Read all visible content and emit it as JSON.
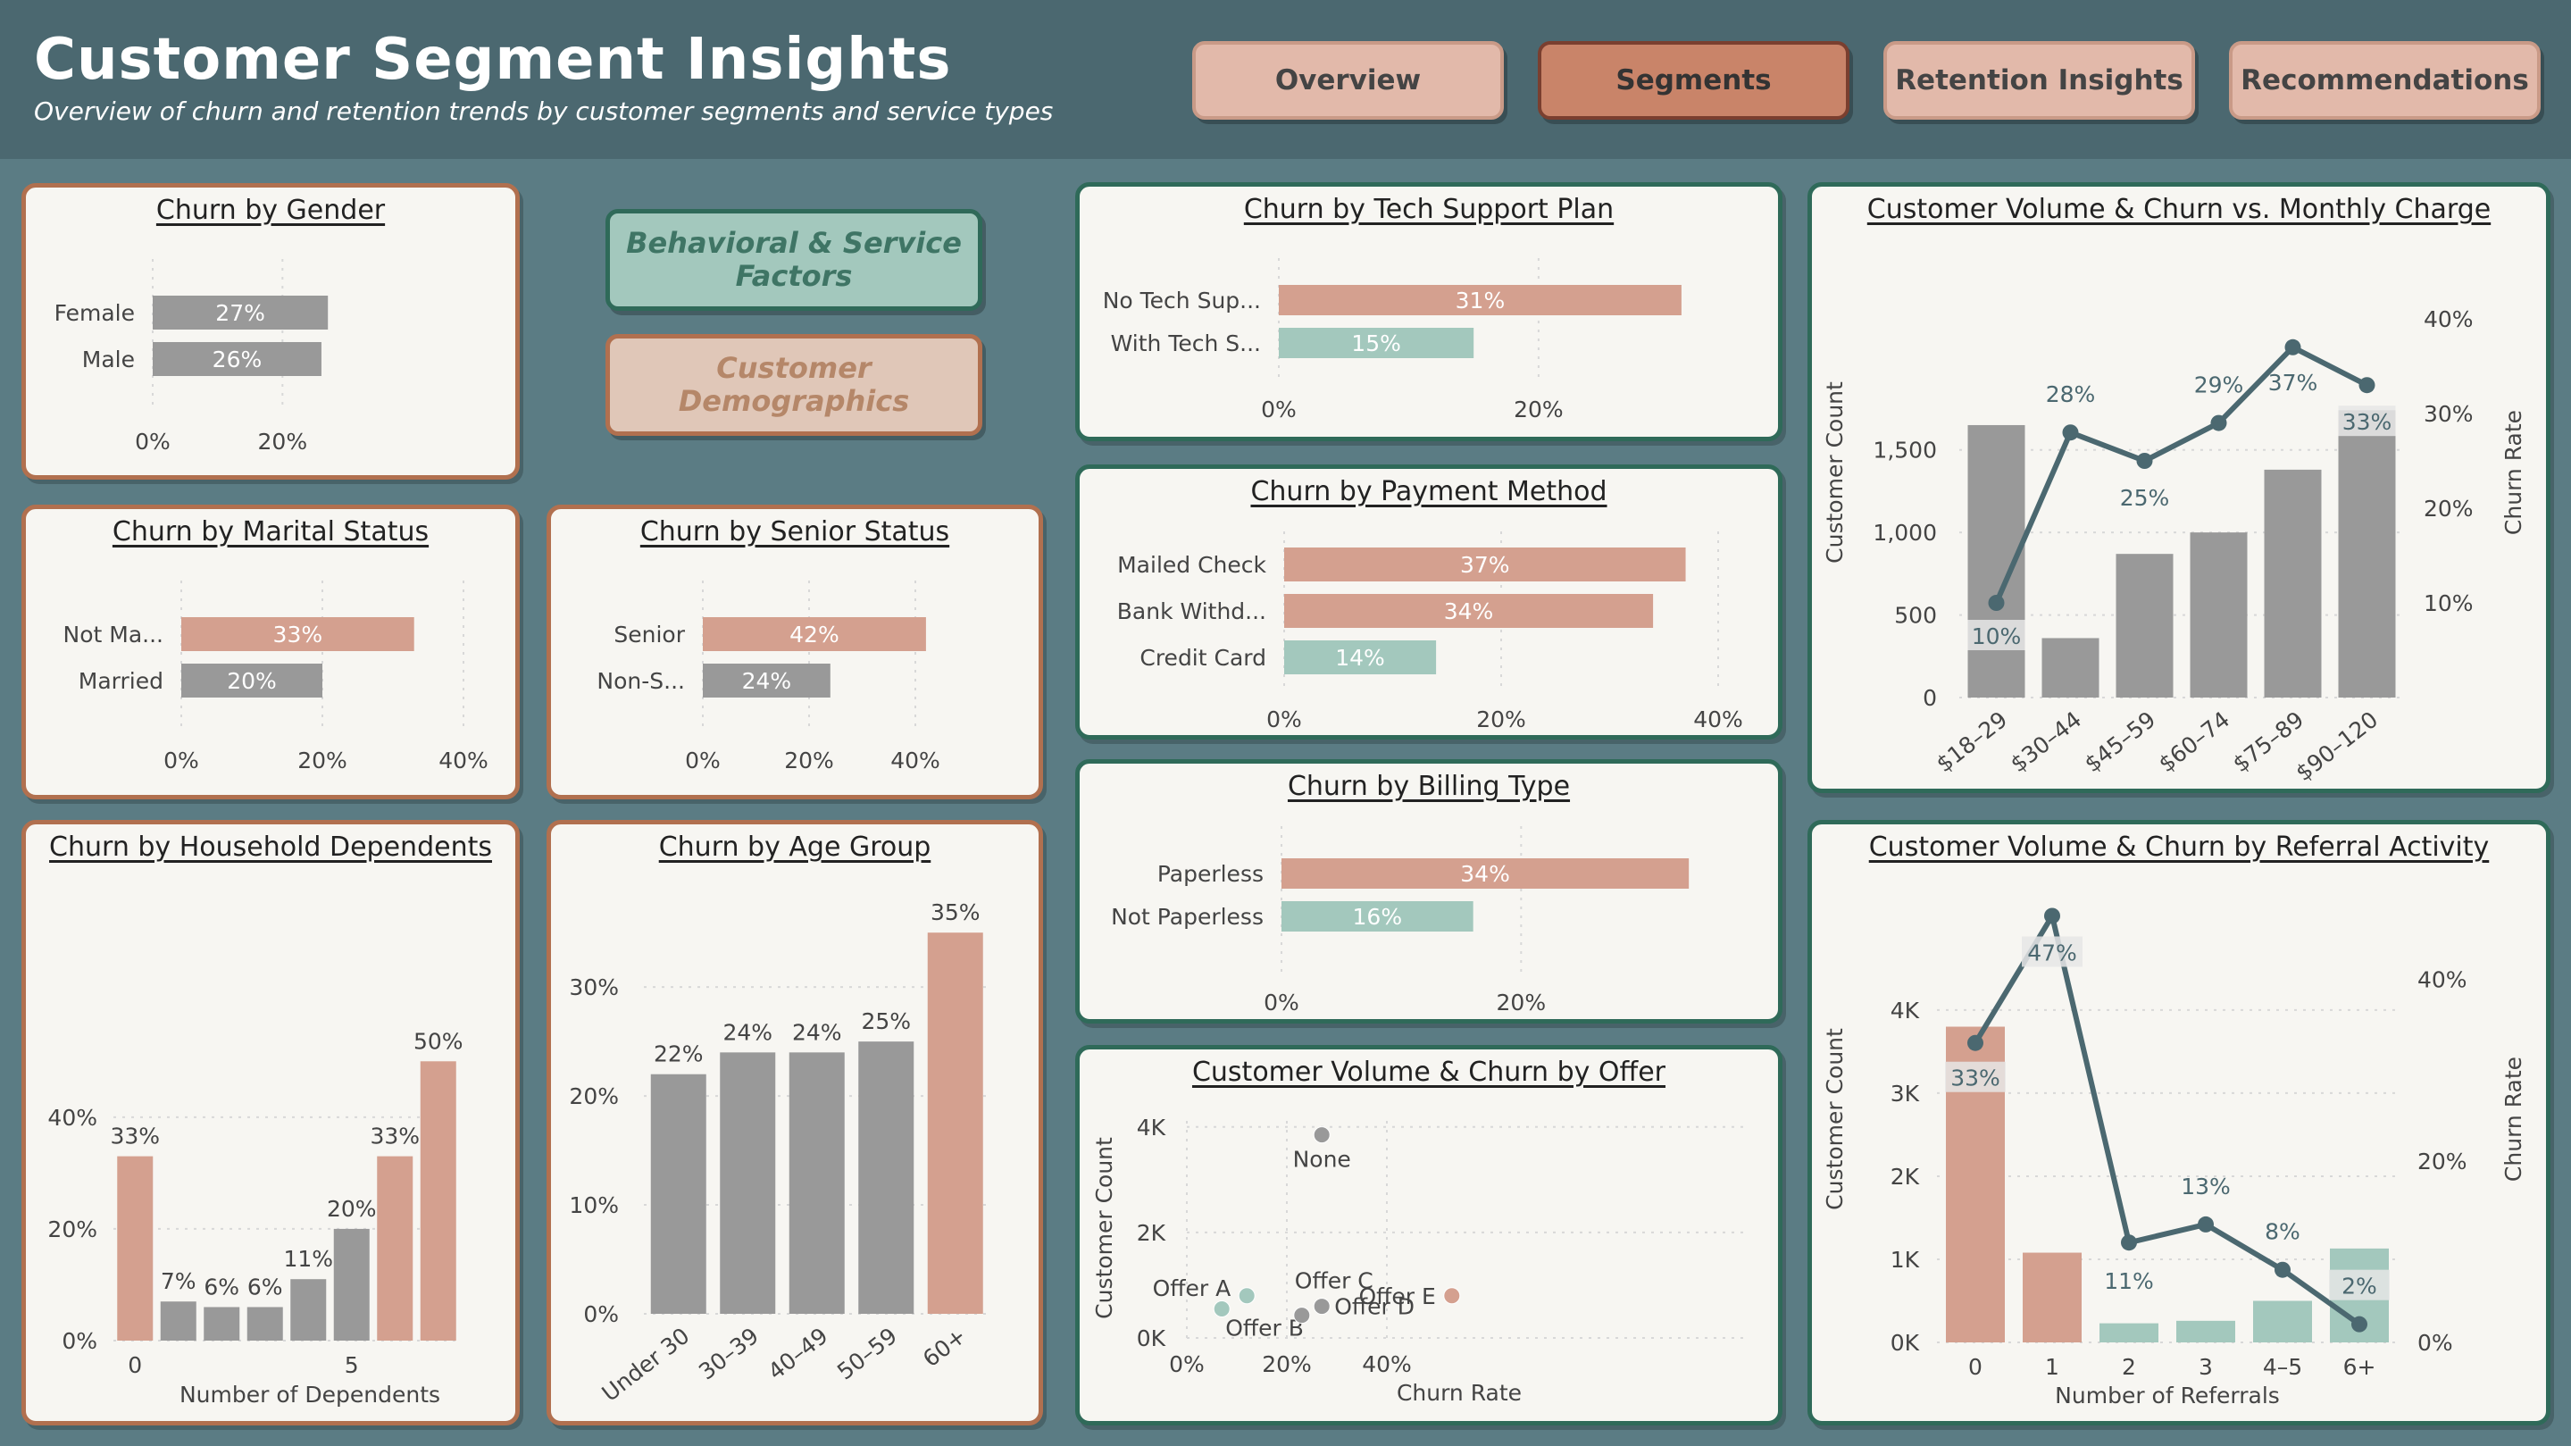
{
  "header": {
    "title": "Customer Segment Insights",
    "subtitle": "Overview of churn and retention trends by customer segments and service types",
    "nav": [
      "Overview",
      "Segments",
      "Retention Insights",
      "Recommendations"
    ],
    "active_nav": "Segments"
  },
  "segment_buttons": {
    "behavioral": "Behavioral & Service Factors",
    "behavioral_lines": [
      "Behavioral & Service",
      "Factors"
    ],
    "demographics": "Customer Demographics",
    "demographics_lines": [
      "Customer",
      "Demographics"
    ]
  },
  "colors": {
    "highlight": "#d4a08f",
    "neutral": "#999999",
    "low": "#a3c8bd",
    "line": "#4b6870",
    "panel_border_green": "#2f6a59",
    "panel_border_brown": "#b1704f"
  },
  "chart_data": [
    {
      "id": "gender",
      "type": "bar",
      "orientation": "horizontal",
      "title": "Churn by Gender",
      "categories": [
        "Female",
        "Male"
      ],
      "values": [
        27,
        26
      ],
      "labels": [
        "27%",
        "26%"
      ],
      "colors": [
        "neutral",
        "neutral"
      ],
      "xlim": [
        0,
        30
      ],
      "xticks": [
        0,
        20
      ],
      "xtick_labels": [
        "0%",
        "20%"
      ]
    },
    {
      "id": "marital",
      "type": "bar",
      "orientation": "horizontal",
      "title": "Churn by Marital Status",
      "categories": [
        "Not Ma...",
        "Married"
      ],
      "values": [
        33,
        20
      ],
      "labels": [
        "33%",
        "20%"
      ],
      "colors": [
        "highlight",
        "neutral"
      ],
      "xlim": [
        0,
        40
      ],
      "xticks": [
        0,
        20,
        40
      ],
      "xtick_labels": [
        "0%",
        "20%",
        "40%"
      ]
    },
    {
      "id": "senior",
      "type": "bar",
      "orientation": "horizontal",
      "title": "Churn by Senior Status",
      "categories": [
        "Senior",
        "Non-S..."
      ],
      "values": [
        42,
        24
      ],
      "labels": [
        "42%",
        "24%"
      ],
      "colors": [
        "highlight",
        "neutral"
      ],
      "xlim": [
        0,
        40
      ],
      "xticks": [
        0,
        20,
        40
      ],
      "xtick_labels": [
        "0%",
        "20%",
        "40%"
      ]
    },
    {
      "id": "dependents",
      "type": "bar",
      "title": "Churn by Household Dependents",
      "xlabel": "Number of Dependents",
      "categories": [
        0,
        1,
        2,
        3,
        4,
        5,
        6,
        7
      ],
      "values": [
        33,
        7,
        6,
        6,
        11,
        20,
        33,
        50
      ],
      "labels": [
        "33%",
        "7%",
        "6%",
        "6%",
        "11%",
        "20%",
        "33%",
        "50%"
      ],
      "colors": [
        "highlight",
        "neutral",
        "neutral",
        "neutral",
        "neutral",
        "neutral",
        "highlight",
        "highlight"
      ],
      "xtick_labels": [
        "0",
        "",
        "",
        "",
        "",
        "5",
        "",
        ""
      ],
      "ylim": [
        0,
        55
      ],
      "yticks": [
        0,
        20,
        40
      ],
      "ytick_labels": [
        "0%",
        "20%",
        "40%"
      ]
    },
    {
      "id": "age",
      "type": "bar",
      "title": "Churn by Age Group",
      "categories": [
        "Under 30",
        "30–39",
        "40–49",
        "50–59",
        "60+"
      ],
      "values": [
        22,
        24,
        24,
        25,
        35
      ],
      "labels": [
        "22%",
        "24%",
        "24%",
        "25%",
        "35%"
      ],
      "colors": [
        "neutral",
        "neutral",
        "neutral",
        "neutral",
        "highlight"
      ],
      "ylim": [
        0,
        36
      ],
      "yticks": [
        0,
        10,
        20,
        30
      ],
      "ytick_labels": [
        "0%",
        "10%",
        "20%",
        "30%"
      ]
    },
    {
      "id": "tech",
      "type": "bar",
      "orientation": "horizontal",
      "title": "Churn by Tech Support Plan",
      "categories": [
        "No Tech Sup...",
        "With Tech S..."
      ],
      "values": [
        31,
        15
      ],
      "labels": [
        "31%",
        "15%"
      ],
      "colors": [
        "highlight",
        "low"
      ],
      "xlim": [
        0,
        33
      ],
      "xticks": [
        0,
        20
      ],
      "xtick_labels": [
        "0%",
        "20%"
      ]
    },
    {
      "id": "payment",
      "type": "bar",
      "orientation": "horizontal",
      "title": "Churn by Payment Method",
      "categories": [
        "Mailed Check",
        "Bank Withd...",
        "Credit Card"
      ],
      "values": [
        37,
        34,
        14
      ],
      "labels": [
        "37%",
        "34%",
        "14%"
      ],
      "colors": [
        "highlight",
        "highlight",
        "low"
      ],
      "xlim": [
        0,
        40
      ],
      "xticks": [
        0,
        20,
        40
      ],
      "xtick_labels": [
        "0%",
        "20%",
        "40%"
      ]
    },
    {
      "id": "billing",
      "type": "bar",
      "orientation": "horizontal",
      "title": "Churn by Billing Type",
      "categories": [
        "Paperless",
        "Not Paperless"
      ],
      "values": [
        34,
        16
      ],
      "labels": [
        "34%",
        "16%"
      ],
      "colors": [
        "highlight",
        "low"
      ],
      "xlim": [
        0,
        36
      ],
      "xticks": [
        0,
        20
      ],
      "xtick_labels": [
        "0%",
        "20%"
      ]
    },
    {
      "id": "offer",
      "type": "scatter",
      "title": "Customer Volume & Churn by Offer",
      "xlabel": "Churn Rate",
      "ylabel": "Customer Count",
      "points": [
        {
          "label": "None",
          "x": 27,
          "y": 3850,
          "color": "neutral"
        },
        {
          "label": "Offer A",
          "x": 12,
          "y": 800,
          "color": "low"
        },
        {
          "label": "Offer B",
          "x": 7,
          "y": 550,
          "color": "low"
        },
        {
          "label": "Offer C",
          "x": 23,
          "y": 430,
          "color": "neutral"
        },
        {
          "label": "Offer D",
          "x": 27,
          "y": 600,
          "color": "neutral"
        },
        {
          "label": "Offer E",
          "x": 53,
          "y": 800,
          "color": "highlight"
        }
      ],
      "xlim": [
        0,
        55
      ],
      "ylim": [
        0,
        4200
      ],
      "xticks": [
        0,
        20,
        40
      ],
      "xtick_labels": [
        "0%",
        "20%",
        "40%"
      ],
      "yticks": [
        0,
        2000,
        4000
      ],
      "ytick_labels": [
        "0K",
        "2K",
        "4K"
      ]
    },
    {
      "id": "charge",
      "type": "bar",
      "title": "Customer Volume & Churn vs. Monthly Charge",
      "ylabel": "Customer Count",
      "y2label": "Churn Rate",
      "categories": [
        "$18–29",
        "$30–44",
        "$45–59",
        "$60–74",
        "$75–89",
        "$90–120"
      ],
      "series": [
        {
          "name": "Customer Count",
          "type": "bar",
          "values": [
            1650,
            360,
            870,
            1000,
            1380,
            1740
          ],
          "color": "neutral"
        },
        {
          "name": "Churn Rate",
          "type": "line",
          "axis": "secondary",
          "values": [
            10,
            28,
            25,
            29,
            37,
            33
          ],
          "labels": [
            "10%",
            "28%",
            "25%",
            "29%",
            "37%",
            "33%"
          ],
          "color": "line"
        }
      ],
      "ylim": [
        0,
        1850
      ],
      "yticks": [
        0,
        500,
        1000,
        1500
      ],
      "ytick_labels": [
        "0",
        "500",
        "1,000",
        "1,500"
      ],
      "y2lim": [
        0,
        40
      ],
      "y2ticks": [
        10,
        20,
        30,
        40
      ],
      "y2tick_labels": [
        "10%",
        "20%",
        "30%",
        "40%"
      ]
    },
    {
      "id": "referral",
      "type": "bar",
      "title": "Customer Volume & Churn by Referral Activity",
      "xlabel": "Number of Referrals",
      "ylabel": "Customer Count",
      "y2label": "Churn Rate",
      "categories": [
        "0",
        "1",
        "2",
        "3",
        "4–5",
        "6+"
      ],
      "series": [
        {
          "name": "Customer Count",
          "type": "bar",
          "values": [
            3800,
            1080,
            230,
            260,
            500,
            1130
          ],
          "colors": [
            "highlight",
            "highlight",
            "low",
            "low",
            "low",
            "low"
          ]
        },
        {
          "name": "Churn Rate",
          "type": "line",
          "axis": "secondary",
          "values": [
            33,
            47,
            11,
            13,
            8,
            2
          ],
          "labels": [
            "33%",
            "47%",
            "11%",
            "13%",
            "8%",
            "2%"
          ],
          "color": "line"
        }
      ],
      "ylim": [
        0,
        4300
      ],
      "yticks": [
        0,
        1000,
        2000,
        3000,
        4000
      ],
      "ytick_labels": [
        "0K",
        "1K",
        "2K",
        "3K",
        "4K"
      ],
      "y2lim": [
        0,
        50
      ],
      "y2ticks": [
        0,
        20,
        40
      ],
      "y2tick_labels": [
        "0%",
        "20%",
        "40%"
      ]
    }
  ]
}
